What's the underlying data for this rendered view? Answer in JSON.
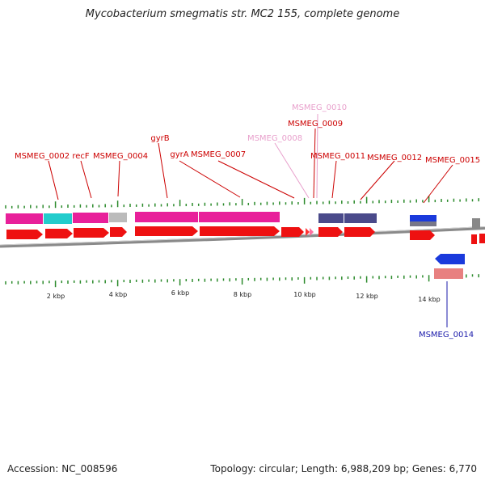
{
  "title": "Mycobacterium smegmatis str. MC2 155, complete genome",
  "footer": {
    "accession": "Accession: NC_008596",
    "summary": "Topology: circular; Length: 6,988,209 bp; Genes: 6,770"
  },
  "colors": {
    "gene_red": "#ee1111",
    "label_red": "#cc0000",
    "label_pink": "#e8a0cc",
    "label_blue": "#1a1aaa",
    "tick_green": "#2b8a2b",
    "backbone": "#8a8a8a",
    "magenta": "#e8209a",
    "cyan": "#22cccc",
    "gray": "#bbbbbb",
    "slate": "#4a4a8a",
    "blue": "#1a3adc",
    "salmon": "#e88080"
  },
  "scale_ticks": [
    {
      "label": "2 kbp"
    },
    {
      "label": "4 kbp"
    },
    {
      "label": "6 kbp"
    },
    {
      "label": "8 kbp"
    },
    {
      "label": "10 kbp"
    },
    {
      "label": "12 kbp"
    },
    {
      "label": "14 kbp"
    }
  ],
  "gene_labels": [
    {
      "id": "MSMEG_0002",
      "text": "MSMEG_0002",
      "color": "red"
    },
    {
      "id": "recF",
      "text": "recF",
      "color": "red"
    },
    {
      "id": "MSMEG_0004",
      "text": "MSMEG_0004",
      "color": "red"
    },
    {
      "id": "gyrB",
      "text": "gyrB",
      "color": "red"
    },
    {
      "id": "gyrA",
      "text": "gyrA",
      "color": "red"
    },
    {
      "id": "MSMEG_0007",
      "text": "MSMEG_0007",
      "color": "red"
    },
    {
      "id": "MSMEG_0008",
      "text": "MSMEG_0008",
      "color": "pink"
    },
    {
      "id": "MSMEG_0009",
      "text": "MSMEG_0009",
      "color": "red"
    },
    {
      "id": "MSMEG_0010",
      "text": "MSMEG_0010",
      "color": "pink"
    },
    {
      "id": "MSMEG_0011",
      "text": "MSMEG_0011",
      "color": "red"
    },
    {
      "id": "MSMEG_0012",
      "text": "MSMEG_0012",
      "color": "red"
    },
    {
      "id": "MSMEG_0015",
      "text": "MSMEG_0015",
      "color": "red"
    },
    {
      "id": "MSMEG_0014",
      "text": "MSMEG_0014",
      "color": "blue"
    }
  ]
}
